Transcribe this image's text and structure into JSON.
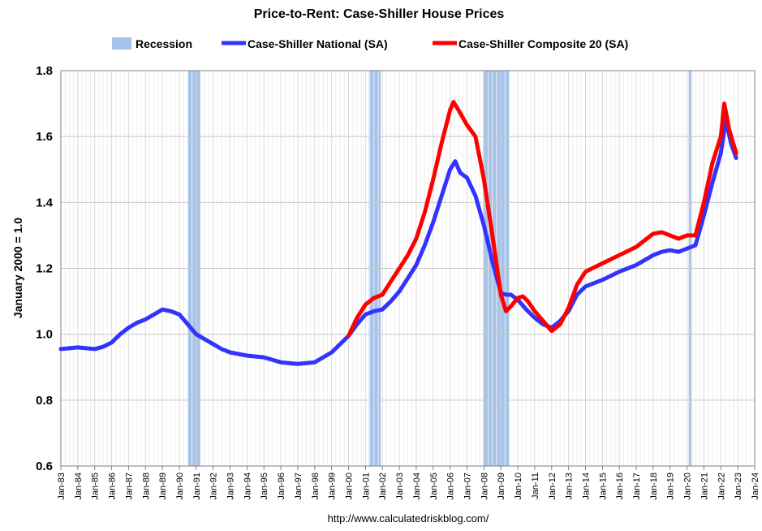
{
  "chart_data": {
    "type": "line",
    "title": "Price-to-Rent: Case-Shiller House Prices",
    "ylabel": "January 2000 = 1.0",
    "xlabel": "",
    "source_note": "http://www.calculatedriskblog.com/",
    "ylim": [
      0.6,
      1.8
    ],
    "yticks": [
      "0.6",
      "0.8",
      "1.0",
      "1.2",
      "1.4",
      "1.6",
      "1.8"
    ],
    "xlim": [
      1983.0,
      2024.0
    ],
    "xticks": [
      "Jan-83",
      "Jan-84",
      "Jan-85",
      "Jan-86",
      "Jan-87",
      "Jan-88",
      "Jan-89",
      "Jan-90",
      "Jan-91",
      "Jan-92",
      "Jan-93",
      "Jan-94",
      "Jan-95",
      "Jan-96",
      "Jan-97",
      "Jan-98",
      "Jan-99",
      "Jan-00",
      "Jan-01",
      "Jan-02",
      "Jan-03",
      "Jan-04",
      "Jan-05",
      "Jan-06",
      "Jan-07",
      "Jan-08",
      "Jan-09",
      "Jan-10",
      "Jan-11",
      "Jan-12",
      "Jan-13",
      "Jan-14",
      "Jan-15",
      "Jan-16",
      "Jan-17",
      "Jan-18",
      "Jan-19",
      "Jan-20",
      "Jan-21",
      "Jan-22",
      "Jan-23",
      "Jan-24"
    ],
    "grid": true,
    "legend_position": "top",
    "legend": {
      "recession": "Recession",
      "national": "Case-Shiller National (SA)",
      "composite": "Case-Shiller Composite 20 (SA)"
    },
    "recessions": [
      {
        "start": 1990.5,
        "end": 1991.25
      },
      {
        "start": 2001.2,
        "end": 2001.9
      },
      {
        "start": 2007.95,
        "end": 2009.5
      },
      {
        "start": 2020.1,
        "end": 2020.3
      }
    ],
    "series": [
      {
        "name": "Case-Shiller National (SA)",
        "color": "#3333ff",
        "x": [
          1983.0,
          1984.0,
          1985.0,
          1985.5,
          1986.0,
          1986.5,
          1987.0,
          1987.5,
          1988.0,
          1988.5,
          1989.0,
          1989.5,
          1990.0,
          1990.5,
          1991.0,
          1991.5,
          1992.0,
          1992.5,
          1993.0,
          1994.0,
          1995.0,
          1996.0,
          1997.0,
          1998.0,
          1999.0,
          2000.0,
          2000.5,
          2001.0,
          2001.5,
          2002.0,
          2002.5,
          2003.0,
          2003.5,
          2004.0,
          2004.5,
          2005.0,
          2005.5,
          2006.0,
          2006.3,
          2006.6,
          2007.0,
          2007.5,
          2008.0,
          2008.5,
          2009.0,
          2009.3,
          2009.6,
          2010.0,
          2010.5,
          2011.0,
          2011.5,
          2012.0,
          2012.5,
          2013.0,
          2013.5,
          2014.0,
          2015.0,
          2016.0,
          2017.0,
          2018.0,
          2018.5,
          2019.0,
          2019.5,
          2020.0,
          2020.5,
          2021.0,
          2021.5,
          2022.0,
          2022.3,
          2022.6,
          2022.9
        ],
        "values": [
          0.955,
          0.96,
          0.955,
          0.962,
          0.975,
          1.0,
          1.02,
          1.035,
          1.045,
          1.06,
          1.075,
          1.07,
          1.06,
          1.03,
          1.0,
          0.985,
          0.97,
          0.955,
          0.945,
          0.935,
          0.93,
          0.915,
          0.91,
          0.915,
          0.945,
          0.995,
          1.03,
          1.06,
          1.07,
          1.075,
          1.1,
          1.13,
          1.17,
          1.21,
          1.27,
          1.34,
          1.42,
          1.5,
          1.525,
          1.49,
          1.475,
          1.42,
          1.33,
          1.22,
          1.125,
          1.12,
          1.12,
          1.105,
          1.075,
          1.05,
          1.03,
          1.02,
          1.04,
          1.07,
          1.12,
          1.145,
          1.165,
          1.19,
          1.21,
          1.24,
          1.25,
          1.255,
          1.25,
          1.26,
          1.27,
          1.36,
          1.46,
          1.55,
          1.65,
          1.58,
          1.535
        ]
      },
      {
        "name": "Case-Shiller Composite 20 (SA)",
        "color": "#ff0000",
        "x": [
          2000.0,
          2000.5,
          2001.0,
          2001.5,
          2002.0,
          2002.5,
          2003.0,
          2003.5,
          2004.0,
          2004.5,
          2005.0,
          2005.5,
          2006.0,
          2006.2,
          2006.5,
          2007.0,
          2007.5,
          2008.0,
          2008.5,
          2009.0,
          2009.3,
          2009.6,
          2010.0,
          2010.3,
          2010.6,
          2011.0,
          2011.5,
          2012.0,
          2012.5,
          2013.0,
          2013.5,
          2014.0,
          2015.0,
          2016.0,
          2017.0,
          2018.0,
          2018.5,
          2019.0,
          2019.5,
          2020.0,
          2020.5,
          2021.0,
          2021.5,
          2022.0,
          2022.2,
          2022.5,
          2022.9
        ],
        "values": [
          0.995,
          1.05,
          1.09,
          1.11,
          1.12,
          1.16,
          1.2,
          1.24,
          1.29,
          1.37,
          1.47,
          1.58,
          1.68,
          1.705,
          1.68,
          1.635,
          1.6,
          1.47,
          1.3,
          1.12,
          1.07,
          1.085,
          1.11,
          1.115,
          1.1,
          1.07,
          1.04,
          1.01,
          1.03,
          1.08,
          1.15,
          1.19,
          1.215,
          1.24,
          1.265,
          1.305,
          1.31,
          1.3,
          1.29,
          1.3,
          1.3,
          1.4,
          1.52,
          1.6,
          1.7,
          1.62,
          1.55
        ]
      }
    ]
  }
}
